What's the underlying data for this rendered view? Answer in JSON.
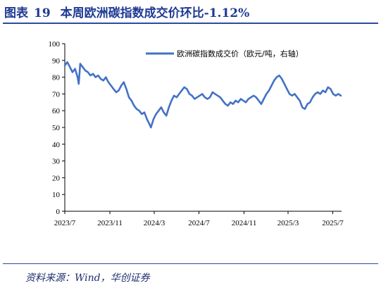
{
  "figure": {
    "label": "图表",
    "number": "19",
    "title": "本周欧洲碳指数成交价环比-1.12%"
  },
  "source": "资料来源：Wind，华创证券",
  "chart_data": {
    "type": "line",
    "xlabel": "",
    "ylabel": "",
    "ylim": [
      0,
      100
    ],
    "yticks": [
      0,
      10,
      20,
      30,
      40,
      50,
      60,
      70,
      80,
      90,
      100
    ],
    "xlim": [
      "2023-07-01",
      "2025-07-25"
    ],
    "xtick_labels": [
      "2023/7",
      "2023/11",
      "2024/3",
      "2024/7",
      "2024/11",
      "2025/3",
      "2025/7"
    ],
    "xtick_dates": [
      "2023-07-01",
      "2023-11-01",
      "2024-03-01",
      "2024-07-01",
      "2024-11-01",
      "2025-03-01",
      "2025-07-01"
    ],
    "grid": false,
    "legend_position": "top-right",
    "series": [
      {
        "name": "欧洲碳指数成交价（欧元/吨，右轴）",
        "color": "#4472c4",
        "points": [
          [
            "2023-07-01",
            87
          ],
          [
            "2023-07-08",
            89
          ],
          [
            "2023-07-15",
            86
          ],
          [
            "2023-07-22",
            83
          ],
          [
            "2023-07-29",
            85
          ],
          [
            "2023-08-05",
            80
          ],
          [
            "2023-08-08",
            76
          ],
          [
            "2023-08-12",
            88
          ],
          [
            "2023-08-19",
            86
          ],
          [
            "2023-08-26",
            84
          ],
          [
            "2023-09-02",
            83
          ],
          [
            "2023-09-09",
            81
          ],
          [
            "2023-09-16",
            82
          ],
          [
            "2023-09-23",
            80
          ],
          [
            "2023-09-30",
            81
          ],
          [
            "2023-10-07",
            79
          ],
          [
            "2023-10-14",
            78
          ],
          [
            "2023-10-21",
            80
          ],
          [
            "2023-10-28",
            77
          ],
          [
            "2023-11-04",
            75
          ],
          [
            "2023-11-11",
            73
          ],
          [
            "2023-11-18",
            71
          ],
          [
            "2023-11-25",
            72
          ],
          [
            "2023-12-02",
            75
          ],
          [
            "2023-12-09",
            77
          ],
          [
            "2023-12-16",
            73
          ],
          [
            "2023-12-23",
            68
          ],
          [
            "2023-12-30",
            66
          ],
          [
            "2024-01-06",
            63
          ],
          [
            "2024-01-13",
            61
          ],
          [
            "2024-01-20",
            60
          ],
          [
            "2024-01-27",
            58
          ],
          [
            "2024-02-03",
            59
          ],
          [
            "2024-02-10",
            55
          ],
          [
            "2024-02-17",
            52
          ],
          [
            "2024-02-21",
            50
          ],
          [
            "2024-02-28",
            55
          ],
          [
            "2024-03-06",
            58
          ],
          [
            "2024-03-13",
            60
          ],
          [
            "2024-03-20",
            62
          ],
          [
            "2024-03-27",
            59
          ],
          [
            "2024-04-03",
            57
          ],
          [
            "2024-04-10",
            62
          ],
          [
            "2024-04-17",
            66
          ],
          [
            "2024-04-24",
            69
          ],
          [
            "2024-05-01",
            68
          ],
          [
            "2024-05-08",
            70
          ],
          [
            "2024-05-15",
            72
          ],
          [
            "2024-05-22",
            74
          ],
          [
            "2024-05-29",
            73
          ],
          [
            "2024-06-05",
            70
          ],
          [
            "2024-06-12",
            69
          ],
          [
            "2024-06-19",
            67
          ],
          [
            "2024-06-26",
            68
          ],
          [
            "2024-07-03",
            69
          ],
          [
            "2024-07-10",
            70
          ],
          [
            "2024-07-17",
            68
          ],
          [
            "2024-07-24",
            67
          ],
          [
            "2024-07-31",
            68
          ],
          [
            "2024-08-07",
            71
          ],
          [
            "2024-08-14",
            70
          ],
          [
            "2024-08-21",
            69
          ],
          [
            "2024-08-28",
            68
          ],
          [
            "2024-09-04",
            66
          ],
          [
            "2024-09-11",
            64
          ],
          [
            "2024-09-18",
            63
          ],
          [
            "2024-09-25",
            65
          ],
          [
            "2024-10-02",
            64
          ],
          [
            "2024-10-09",
            66
          ],
          [
            "2024-10-16",
            65
          ],
          [
            "2024-10-23",
            67
          ],
          [
            "2024-10-30",
            66
          ],
          [
            "2024-11-06",
            65
          ],
          [
            "2024-11-13",
            67
          ],
          [
            "2024-11-20",
            68
          ],
          [
            "2024-11-27",
            69
          ],
          [
            "2024-12-04",
            68
          ],
          [
            "2024-12-11",
            66
          ],
          [
            "2024-12-18",
            64
          ],
          [
            "2024-12-25",
            67
          ],
          [
            "2025-01-01",
            70
          ],
          [
            "2025-01-08",
            72
          ],
          [
            "2025-01-15",
            75
          ],
          [
            "2025-01-22",
            78
          ],
          [
            "2025-01-29",
            80
          ],
          [
            "2025-02-05",
            81
          ],
          [
            "2025-02-12",
            79
          ],
          [
            "2025-02-19",
            76
          ],
          [
            "2025-02-26",
            73
          ],
          [
            "2025-03-05",
            70
          ],
          [
            "2025-03-12",
            69
          ],
          [
            "2025-03-19",
            70
          ],
          [
            "2025-03-26",
            68
          ],
          [
            "2025-04-02",
            66
          ],
          [
            "2025-04-09",
            62
          ],
          [
            "2025-04-16",
            61
          ],
          [
            "2025-04-23",
            64
          ],
          [
            "2025-04-30",
            65
          ],
          [
            "2025-05-07",
            68
          ],
          [
            "2025-05-14",
            70
          ],
          [
            "2025-05-21",
            71
          ],
          [
            "2025-05-28",
            70
          ],
          [
            "2025-06-04",
            72
          ],
          [
            "2025-06-11",
            71
          ],
          [
            "2025-06-18",
            74
          ],
          [
            "2025-06-25",
            73
          ],
          [
            "2025-07-02",
            70
          ],
          [
            "2025-07-09",
            69
          ],
          [
            "2025-07-16",
            70
          ],
          [
            "2025-07-23",
            69
          ]
        ]
      }
    ]
  }
}
